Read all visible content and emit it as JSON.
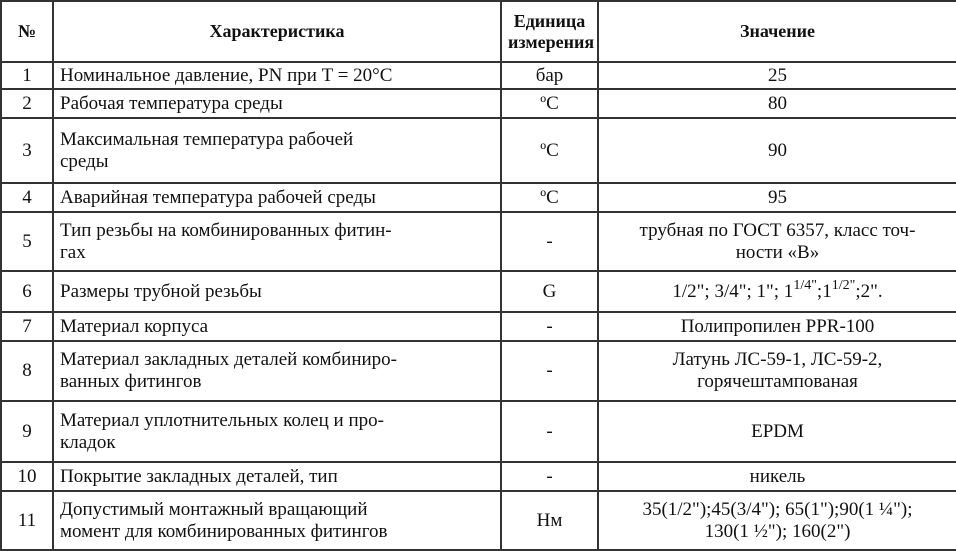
{
  "headers": [
    "№",
    "Характеристика",
    "Единица\nизмерения",
    "Значение"
  ],
  "rows": [
    {
      "n": "1",
      "name": "Номинальное давление, PN при T = 20°C",
      "unit": "бар",
      "value": "25"
    },
    {
      "n": "2",
      "name": "Рабочая температура среды",
      "unit": "ºС",
      "value": "80"
    },
    {
      "n": "3",
      "name": "Максимальная температура рабочей\nсреды",
      "unit": "ºС",
      "value": "90"
    },
    {
      "n": "4",
      "name": "Аварийная температура рабочей среды",
      "unit": "ºС",
      "value": "95"
    },
    {
      "n": "5",
      "name": "Тип резьбы на комбинированных фитин-\nгах",
      "unit": "-",
      "value": "трубная по ГОСТ 6357, класс точ-\nности «В»"
    },
    {
      "n": "6",
      "name": "Размеры трубной резьбы",
      "unit": "G",
      "value_parts": [
        "1/2\"; 3/4\"; 1\";  1",
        "1/4\"",
        ";1",
        "1/2\"",
        ";2\"."
      ]
    },
    {
      "n": "7",
      "name": "Материал корпуса",
      "unit": "-",
      "value": "Полипропилен PPR-100"
    },
    {
      "n": "8",
      "name": "Материал закладных деталей комбиниро-\nванных фитингов",
      "unit": "-",
      "value": "Латунь ЛС-59-1, ЛС-59-2,\nгорячештампованая"
    },
    {
      "n": "9",
      "name": "Материал уплотнительных колец и про-\nкладок",
      "unit": "-",
      "value": "EPDM"
    },
    {
      "n": "10",
      "name": "Покрытие закладных деталей, тип",
      "unit": "-",
      "value": "никель"
    },
    {
      "n": "11",
      "name": "Допустимый монтажный вращающий\nмомент для комбинированных фитингов",
      "unit": "Нм",
      "value": "35(1/2\");45(3/4\"); 65(1\");90(1 ¼\");\n130(1 ½\"); 160(2\")"
    }
  ]
}
